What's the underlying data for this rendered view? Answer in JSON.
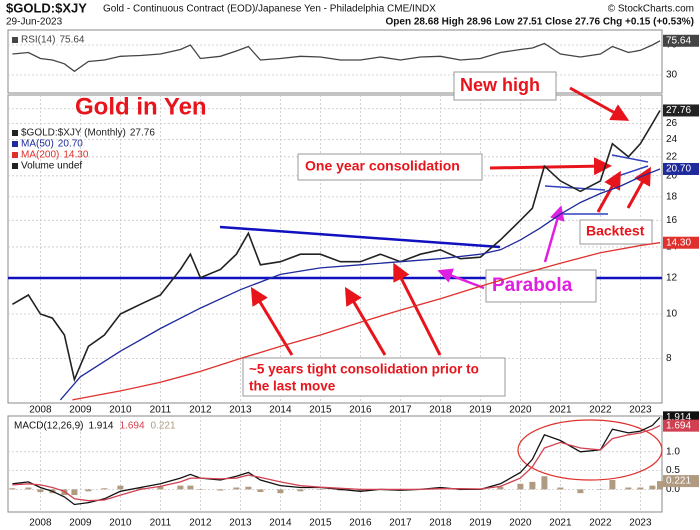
{
  "header": {
    "symbol": "$GOLD:$XJY",
    "description": "Gold - Continuous Contract (EOD)/Japanese Yen - Philadelphia CME/INDX",
    "credit": "© StockCharts.com",
    "date": "29-Jun-2023",
    "quote": "Open 28.68 High 28.96 Low 27.51 Close 27.76 Chg +0.15 (+0.53%)"
  },
  "annotations": {
    "title": "Gold in Yen",
    "new_high": "New high",
    "one_year": "One year consolidation",
    "backtest": "Backtest",
    "parabola": "Parabola",
    "five_years": [
      "~5 years tight consolidation prior to",
      "the last move"
    ]
  },
  "chart_data": [
    {
      "type": "line",
      "xlim": [
        2007.19,
        2023.54
      ],
      "ylim": [
        6,
        90
      ],
      "yticks": [
        30,
        70
      ],
      "x": [
        2007.3,
        2007.7,
        2008.0,
        2008.3,
        2008.6,
        2008.85,
        2009.2,
        2009.6,
        2010.0,
        2010.5,
        2011.0,
        2011.5,
        2011.75,
        2012.0,
        2012.5,
        2012.9,
        2013.2,
        2013.5,
        2014.0,
        2014.5,
        2015.0,
        2015.5,
        2016.0,
        2016.5,
        2017.0,
        2017.5,
        2018.0,
        2018.5,
        2019.0,
        2019.5,
        2020.0,
        2020.3,
        2020.6,
        2021.0,
        2021.5,
        2022.0,
        2022.3,
        2022.7,
        2023.0,
        2023.3,
        2023.49
      ],
      "series": [
        {
          "name": "RSI(14)",
          "color": "#444444",
          "values": [
            58,
            60,
            52,
            50,
            45,
            35,
            48,
            50,
            55,
            56,
            58,
            64,
            70,
            52,
            55,
            62,
            68,
            50,
            52,
            55,
            54,
            50,
            50,
            54,
            50,
            54,
            55,
            50,
            52,
            60,
            64,
            66,
            72,
            58,
            54,
            58,
            68,
            60,
            63,
            70,
            75.64
          ]
        }
      ]
    },
    {
      "type": "line",
      "log_scale": true,
      "xlim": [
        2007.19,
        2023.54
      ],
      "ylim": [
        6.4,
        30
      ],
      "yticks": [
        8,
        10,
        12,
        14,
        16,
        18,
        20,
        22,
        24,
        26,
        28
      ],
      "xticks": [
        2008,
        2009,
        2010,
        2011,
        2012,
        2013,
        2014,
        2015,
        2016,
        2017,
        2018,
        2019,
        2020,
        2021,
        2022,
        2023
      ],
      "x": [
        2007.3,
        2007.7,
        2008.0,
        2008.3,
        2008.6,
        2008.85,
        2009.2,
        2009.6,
        2010.0,
        2010.5,
        2011.0,
        2011.5,
        2011.75,
        2012.0,
        2012.5,
        2012.9,
        2013.2,
        2013.5,
        2014.0,
        2014.5,
        2015.0,
        2015.5,
        2016.0,
        2016.5,
        2017.0,
        2017.5,
        2018.0,
        2018.5,
        2019.0,
        2019.5,
        2020.0,
        2020.3,
        2020.6,
        2021.0,
        2021.5,
        2022.0,
        2022.3,
        2022.7,
        2023.0,
        2023.3,
        2023.49
      ],
      "volume_label": "Volume undef",
      "series": [
        {
          "name": "$GOLD:$XJY (Monthly)",
          "color": "#222222",
          "last_label": "27.76",
          "values": [
            10.5,
            11.0,
            10.0,
            9.8,
            9.0,
            7.2,
            8.5,
            9.0,
            10.0,
            10.5,
            11.0,
            12.5,
            13.5,
            12.0,
            12.5,
            13.5,
            15.0,
            12.8,
            13.0,
            13.5,
            13.5,
            13.0,
            13.0,
            13.5,
            13.0,
            13.5,
            13.8,
            13.2,
            13.3,
            14.5,
            16.0,
            17.0,
            21.0,
            19.5,
            18.5,
            19.5,
            23.5,
            22.0,
            23.5,
            26.0,
            27.76
          ]
        },
        {
          "name": "MA(50)",
          "color": "#1f2a9c",
          "last_label": "20.70",
          "x": [
            2008.5,
            2009,
            2010,
            2011,
            2012,
            2013,
            2014,
            2015,
            2016,
            2017,
            2018,
            2019,
            2019.5,
            2020,
            2020.5,
            2021,
            2021.5,
            2022,
            2022.5,
            2023,
            2023.49
          ],
          "values": [
            6.5,
            7.3,
            8.3,
            9.3,
            10.3,
            11.3,
            12.2,
            12.6,
            12.8,
            13.0,
            13.2,
            13.5,
            13.8,
            14.5,
            15.4,
            16.5,
            17.5,
            18.3,
            19.0,
            19.9,
            20.7
          ]
        },
        {
          "name": "MA(200)",
          "color": "#e0302c",
          "last_label": "14.30",
          "x": [
            2008.8,
            2010,
            2011,
            2012,
            2013,
            2014,
            2015,
            2016,
            2017,
            2018,
            2019,
            2020,
            2021,
            2022,
            2023,
            2023.49
          ],
          "values": [
            6.5,
            6.8,
            7.1,
            7.5,
            8.0,
            8.5,
            9.0,
            9.6,
            10.2,
            10.8,
            11.5,
            12.2,
            12.9,
            13.6,
            14.1,
            14.3
          ]
        }
      ]
    },
    {
      "type": "line",
      "xlim": [
        2007.19,
        2023.54
      ],
      "ylim": [
        -0.6,
        1.95
      ],
      "yticks": [
        {
          "value": 0,
          "label": "0.0"
        },
        0.5,
        {
          "value": 1,
          "label": "1.0"
        }
      ],
      "xticks": [
        2008,
        2009,
        2010,
        2011,
        2012,
        2013,
        2014,
        2015,
        2016,
        2017,
        2018,
        2019,
        2020,
        2021,
        2022,
        2023
      ],
      "x": [
        2007.3,
        2007.7,
        2008.0,
        2008.3,
        2008.6,
        2008.85,
        2009.2,
        2009.6,
        2010.0,
        2010.5,
        2011.0,
        2011.5,
        2011.75,
        2012.0,
        2012.5,
        2012.9,
        2013.2,
        2013.5,
        2014.0,
        2014.5,
        2015.0,
        2015.5,
        2016.0,
        2016.5,
        2017.0,
        2017.5,
        2018.0,
        2018.5,
        2019.0,
        2019.5,
        2020.0,
        2020.3,
        2020.6,
        2021.0,
        2021.5,
        2022.0,
        2022.3,
        2022.7,
        2023.0,
        2023.3,
        2023.49
      ],
      "series": [
        {
          "name": "MACD(12,26,9)",
          "color": "#111111",
          "values": [
            0.15,
            0.2,
            0.05,
            -0.05,
            -0.2,
            -0.4,
            -0.35,
            -0.25,
            -0.05,
            0.05,
            0.15,
            0.3,
            0.4,
            0.3,
            0.25,
            0.35,
            0.45,
            0.25,
            0.1,
            0.05,
            0.05,
            0.0,
            -0.05,
            0.0,
            -0.02,
            0.0,
            0.05,
            0.0,
            0.0,
            0.15,
            0.45,
            0.8,
            1.45,
            1.3,
            1.0,
            1.05,
            1.6,
            1.5,
            1.55,
            1.7,
            1.914
          ]
        },
        {
          "color": "#d04050",
          "values": [
            0.12,
            0.15,
            0.12,
            0.05,
            -0.05,
            -0.25,
            -0.3,
            -0.28,
            -0.15,
            0.0,
            0.08,
            0.2,
            0.3,
            0.3,
            0.28,
            0.3,
            0.38,
            0.32,
            0.2,
            0.1,
            0.06,
            0.03,
            0.0,
            0.0,
            0.0,
            0.0,
            0.02,
            0.02,
            0.01,
            0.08,
            0.3,
            0.6,
            1.1,
            1.25,
            1.1,
            1.05,
            1.35,
            1.45,
            1.5,
            1.6,
            1.694
          ]
        },
        {
          "type": "bar",
          "color": "#b09a80",
          "values": [
            0.03,
            0.05,
            -0.07,
            -0.1,
            -0.15,
            -0.15,
            -0.05,
            0.03,
            0.1,
            0.05,
            0.07,
            0.1,
            0.1,
            0.0,
            -0.03,
            0.05,
            0.07,
            -0.07,
            -0.1,
            -0.05,
            -0.01,
            -0.03,
            -0.05,
            0.0,
            -0.02,
            0.0,
            0.03,
            -0.02,
            -0.01,
            0.07,
            0.15,
            0.2,
            0.35,
            0.05,
            -0.1,
            0.0,
            0.25,
            0.05,
            0.05,
            0.1,
            0.221
          ]
        }
      ]
    }
  ]
}
